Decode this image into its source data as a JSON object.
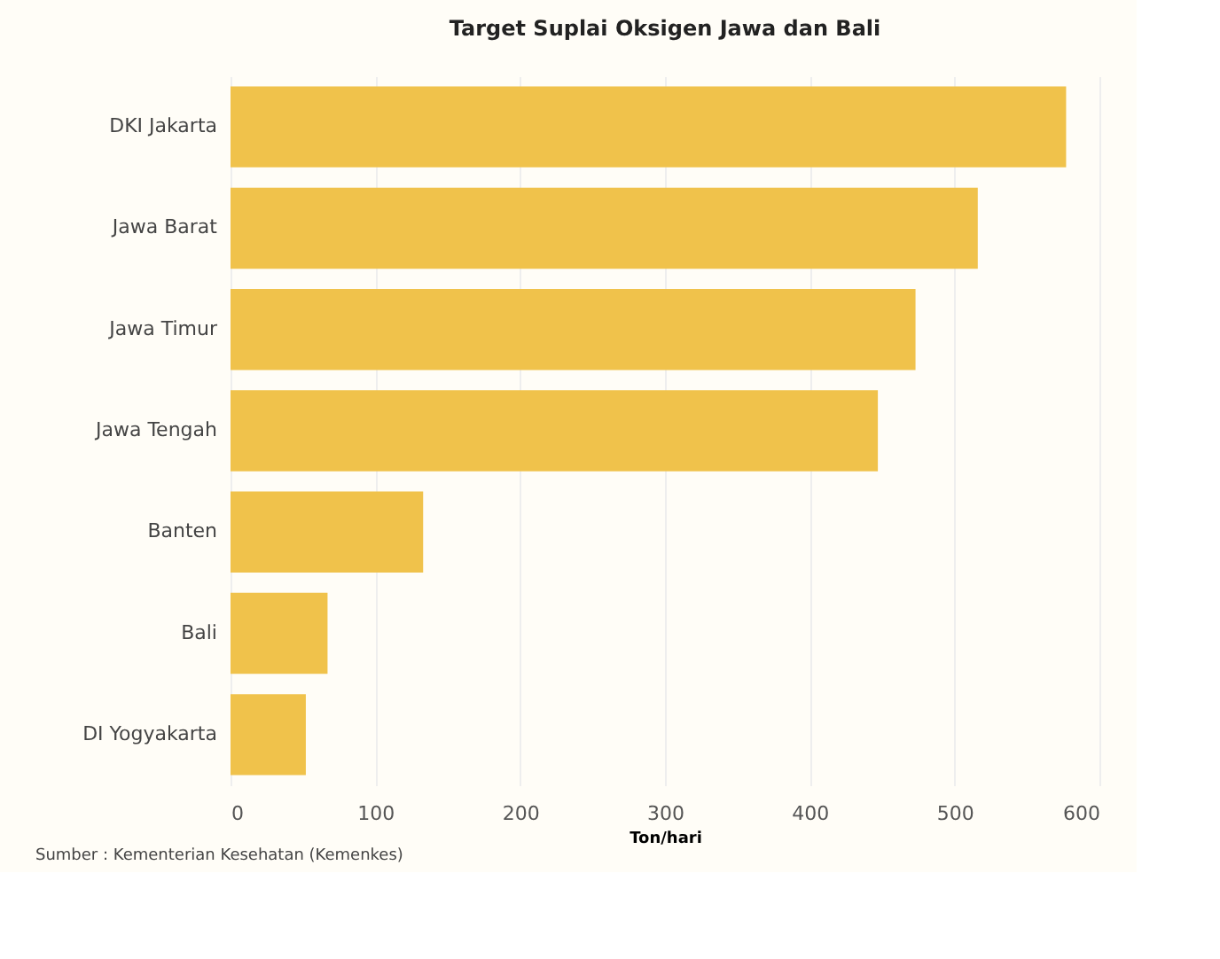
{
  "chart_data": {
    "type": "bar",
    "orientation": "horizontal",
    "title": "Target Suplai Oksigen Jawa dan Bali",
    "xlabel": "Ton/hari",
    "categories": [
      "DKI Jakarta",
      "Jawa Barat",
      "Jawa Timur",
      "Jawa Tengah",
      "Banten",
      "Bali",
      "DI Yogyakarta"
    ],
    "values": [
      577,
      516,
      473,
      447,
      133,
      67,
      52
    ],
    "color": "#f0c24b",
    "xlim": [
      0,
      600
    ],
    "xticks": [
      0,
      100,
      200,
      300,
      400,
      500,
      600
    ],
    "grid": "x",
    "annotations": [
      "Sumber : Kementerian Kesehatan (Kemenkes)"
    ]
  }
}
